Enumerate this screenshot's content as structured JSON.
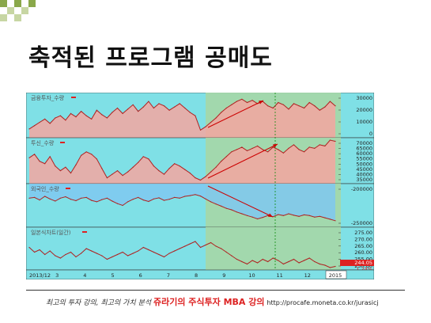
{
  "slide": {
    "title": "축적된 프로그램 공매도",
    "footer_prefix": "최고의 투자 강의, 최고의 가치 분석",
    "footer_brand": "쥬라기의 주식투자 MBA 강의",
    "footer_url": "http://procafe.moneta.co.kr/jurasicj",
    "colors": {
      "deco_green": "#8aa84a",
      "deco_light": "#c7d6a3"
    }
  },
  "chart_data": [
    {
      "type": "area",
      "panel": "금융투자_수량",
      "title": "금융투자_수량",
      "y_ticks": [
        "30000",
        "20000",
        "10000",
        "0"
      ],
      "ylim": [
        -5000,
        36000
      ],
      "x": [
        0,
        1,
        2,
        3,
        4,
        5,
        6,
        7,
        8,
        9,
        10,
        11,
        12,
        13,
        14,
        15,
        16,
        17,
        18,
        19,
        20,
        21,
        22,
        23,
        24,
        25,
        26,
        27,
        28,
        29,
        30,
        31,
        32,
        33,
        34,
        35,
        36,
        37,
        38,
        39,
        40,
        41,
        42,
        43,
        44,
        45,
        46,
        47,
        48,
        49,
        50,
        51,
        52,
        53,
        54,
        55,
        56,
        57,
        58,
        59
      ],
      "values": [
        3000,
        6000,
        9000,
        12000,
        8000,
        13000,
        15000,
        11000,
        17000,
        14000,
        19000,
        15000,
        12000,
        20000,
        16000,
        13000,
        18000,
        22000,
        17000,
        21000,
        25000,
        19000,
        23000,
        28000,
        22000,
        26000,
        24000,
        20000,
        23000,
        26000,
        22000,
        18000,
        15000,
        2000,
        5000,
        9000,
        13000,
        18000,
        22000,
        25000,
        28000,
        30000,
        27000,
        29000,
        26000,
        28000,
        24000,
        22000,
        27000,
        25000,
        21000,
        26000,
        24000,
        22000,
        27000,
        24000,
        20000,
        23000,
        28000,
        24000
      ]
    },
    {
      "type": "area",
      "panel": "투신_수량",
      "title": "투신_수량",
      "y_ticks": [
        "70000",
        "65000",
        "60000",
        "55000",
        "50000",
        "45000",
        "40000",
        "35000"
      ],
      "ylim": [
        33000,
        72000
      ],
      "x": [
        0,
        1,
        2,
        3,
        4,
        5,
        6,
        7,
        8,
        9,
        10,
        11,
        12,
        13,
        14,
        15,
        16,
        17,
        18,
        19,
        20,
        21,
        22,
        23,
        24,
        25,
        26,
        27,
        28,
        29,
        30,
        31,
        32,
        33,
        34,
        35,
        36,
        37,
        38,
        39,
        40,
        41,
        42,
        43,
        44,
        45,
        46,
        47,
        48,
        49,
        50,
        51,
        52,
        53,
        54,
        55,
        56,
        57,
        58,
        59
      ],
      "values": [
        55000,
        58000,
        52000,
        50000,
        56000,
        48000,
        44000,
        47000,
        42000,
        49000,
        57000,
        60000,
        58000,
        54000,
        46000,
        38000,
        41000,
        44000,
        40000,
        43000,
        47000,
        51000,
        56000,
        54000,
        48000,
        44000,
        41000,
        46000,
        50000,
        48000,
        45000,
        42000,
        38000,
        36000,
        39000,
        43000,
        47000,
        52000,
        56000,
        60000,
        62000,
        64000,
        61000,
        63000,
        65000,
        62000,
        60000,
        64000,
        62000,
        59000,
        63000,
        66000,
        62000,
        60000,
        64000,
        63000,
        66000,
        65000,
        70000,
        69000
      ]
    },
    {
      "type": "area",
      "panel": "외국인_수량",
      "title": "외국인_수량",
      "y_ticks": [
        "-200000",
        "-250000"
      ],
      "ylim": [
        -270000,
        -150000
      ],
      "x": [
        0,
        1,
        2,
        3,
        4,
        5,
        6,
        7,
        8,
        9,
        10,
        11,
        12,
        13,
        14,
        15,
        16,
        17,
        18,
        19,
        20,
        21,
        22,
        23,
        24,
        25,
        26,
        27,
        28,
        29,
        30,
        31,
        32,
        33,
        34,
        35,
        36,
        37,
        38,
        39,
        40,
        41,
        42,
        43,
        44,
        45,
        46,
        47,
        48,
        49,
        50,
        51,
        52,
        53,
        54,
        55,
        56,
        57,
        58,
        59
      ],
      "values": [
        -190000,
        -188000,
        -195000,
        -185000,
        -192000,
        -198000,
        -190000,
        -186000,
        -193000,
        -197000,
        -190000,
        -188000,
        -196000,
        -200000,
        -194000,
        -190000,
        -198000,
        -205000,
        -210000,
        -200000,
        -193000,
        -188000,
        -195000,
        -199000,
        -192000,
        -189000,
        -196000,
        -193000,
        -188000,
        -190000,
        -185000,
        -183000,
        -180000,
        -184000,
        -192000,
        -200000,
        -206000,
        -212000,
        -218000,
        -222000,
        -228000,
        -233000,
        -238000,
        -242000,
        -247000,
        -243000,
        -238000,
        -241000,
        -235000,
        -238000,
        -233000,
        -237000,
        -240000,
        -236000,
        -238000,
        -242000,
        -240000,
        -244000,
        -248000,
        -252000
      ]
    },
    {
      "type": "line",
      "panel": "일본식차트(일간)",
      "title": "일본식차트(일간)",
      "y_ticks": [
        "275.00",
        "270.00",
        "265.00",
        "260.00",
        "255.00",
        "250.00"
      ],
      "ylim": [
        243,
        279
      ],
      "price_label": "244.05",
      "change_label": "1.24%",
      "x": [
        0,
        1,
        2,
        3,
        4,
        5,
        6,
        7,
        8,
        9,
        10,
        11,
        12,
        13,
        14,
        15,
        16,
        17,
        18,
        19,
        20,
        21,
        22,
        23,
        24,
        25,
        26,
        27,
        28,
        29,
        30,
        31,
        32,
        33,
        34,
        35,
        36,
        37,
        38,
        39,
        40,
        41,
        42,
        43,
        44,
        45,
        46,
        47,
        48,
        49,
        50,
        51,
        52,
        53,
        54,
        55,
        56,
        57,
        58,
        59
      ],
      "values": [
        262,
        258,
        260,
        256,
        259,
        255,
        253,
        256,
        258,
        254,
        257,
        261,
        259,
        257,
        255,
        252,
        254,
        256,
        258,
        255,
        257,
        259,
        262,
        260,
        258,
        256,
        254,
        257,
        259,
        261,
        263,
        265,
        267,
        262,
        264,
        266,
        263,
        261,
        258,
        255,
        252,
        250,
        248,
        251,
        249,
        252,
        250,
        253,
        251,
        248,
        250,
        252,
        249,
        251,
        253,
        250,
        248,
        247,
        245,
        246
      ],
      "x_tick_labels": [
        "2013/12",
        "3",
        "4",
        "5",
        "6",
        "7",
        "8",
        "9",
        "10",
        "11",
        "12",
        "2015"
      ]
    }
  ]
}
